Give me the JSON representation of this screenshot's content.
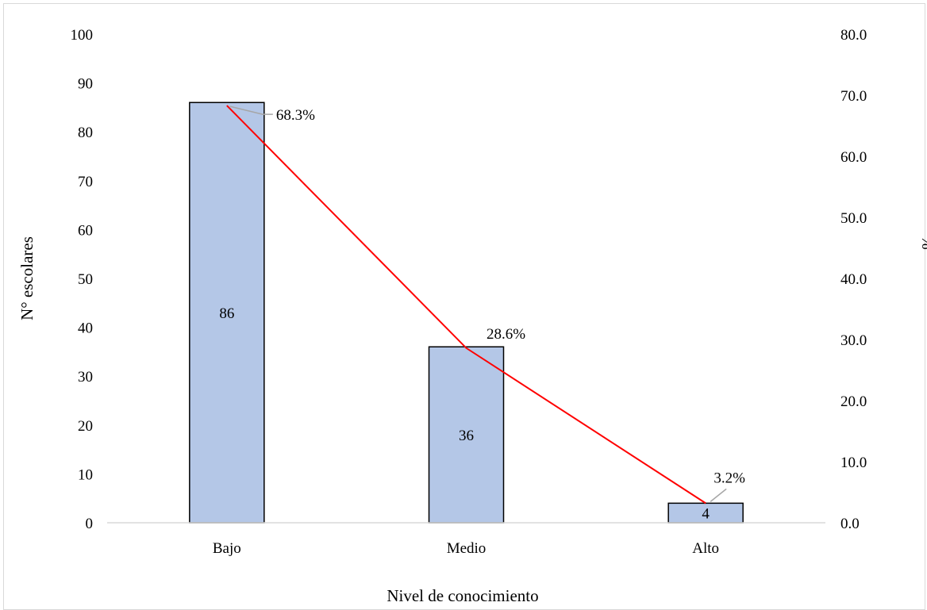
{
  "chart_data": {
    "type": "bar",
    "title": "",
    "xlabel": "Nivel de conocimiento",
    "ylabel": "N° escolares",
    "y2label": "%",
    "categories": [
      "Bajo",
      "Medio",
      "Alto"
    ],
    "ylim": [
      0,
      100
    ],
    "y2lim": [
      0,
      80
    ],
    "yticks": [
      "0",
      "10",
      "20",
      "30",
      "40",
      "50",
      "60",
      "70",
      "80",
      "90",
      "100"
    ],
    "y2ticks": [
      "0.0",
      "10.0",
      "20.0",
      "30.0",
      "40.0",
      "50.0",
      "60.0",
      "70.0",
      "80.0"
    ],
    "grid": false,
    "legend": "none",
    "series": [
      {
        "kind": "bar",
        "axis": "primary",
        "values": [
          86,
          36,
          4
        ],
        "labels": [
          "86",
          "36",
          "4"
        ],
        "color": "#b4c7e7",
        "edge_color": "#000000"
      },
      {
        "kind": "line",
        "axis": "secondary",
        "values": [
          68.3,
          28.6,
          3.2
        ],
        "labels": [
          "68.3%",
          "28.6%",
          "3.2%"
        ],
        "color": "#ff0000"
      }
    ]
  }
}
